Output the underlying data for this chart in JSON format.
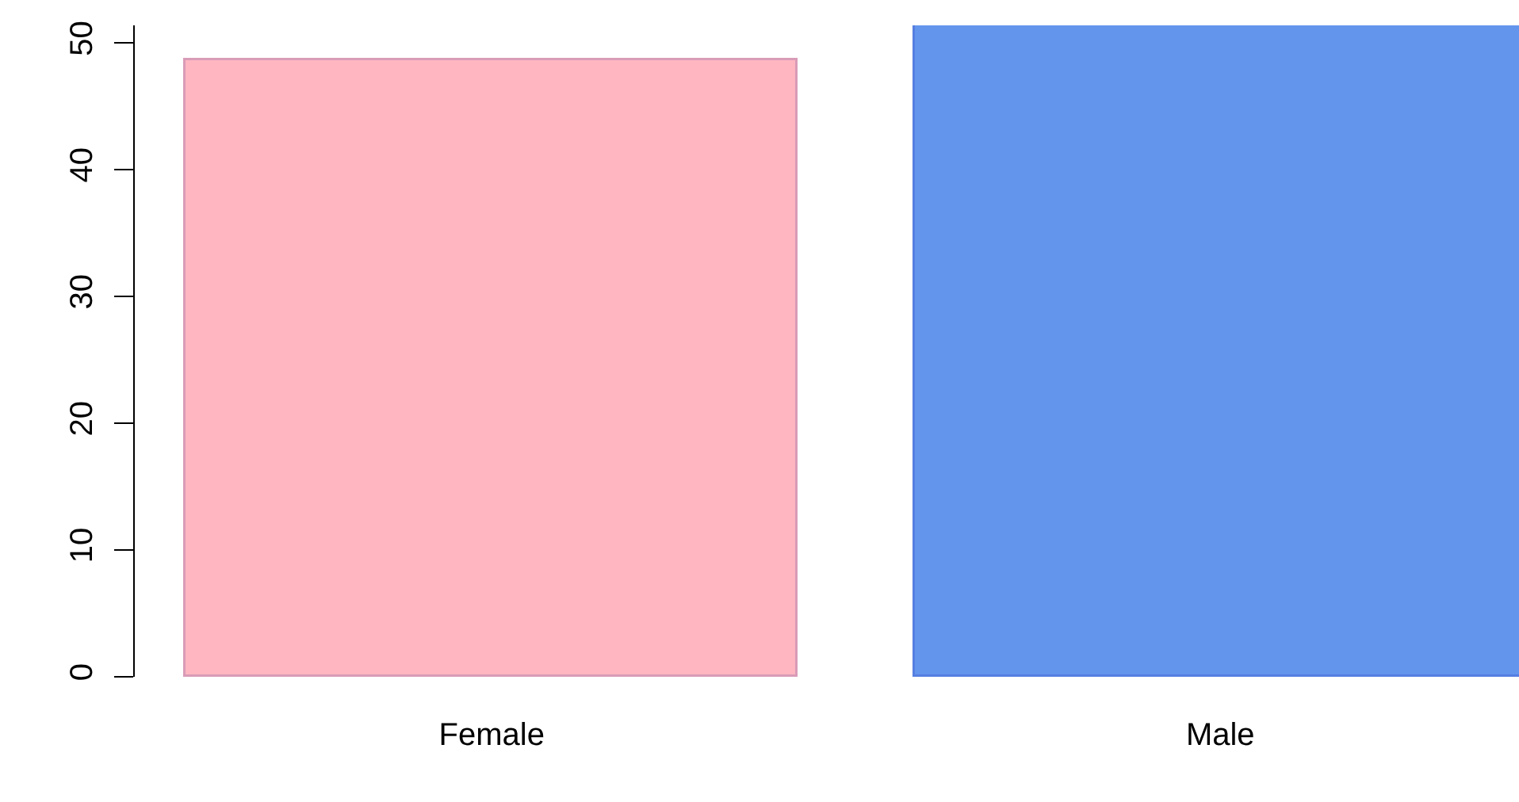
{
  "chart_data": {
    "type": "bar",
    "categories": [
      "Female",
      "Male"
    ],
    "values": [
      48.6,
      51.4
    ],
    "colors": [
      "#ffb6c1",
      "#6495ed"
    ],
    "ylim": [
      0,
      51.4
    ],
    "yticks": [
      0,
      10,
      20,
      30,
      40,
      50
    ],
    "grid": false
  }
}
